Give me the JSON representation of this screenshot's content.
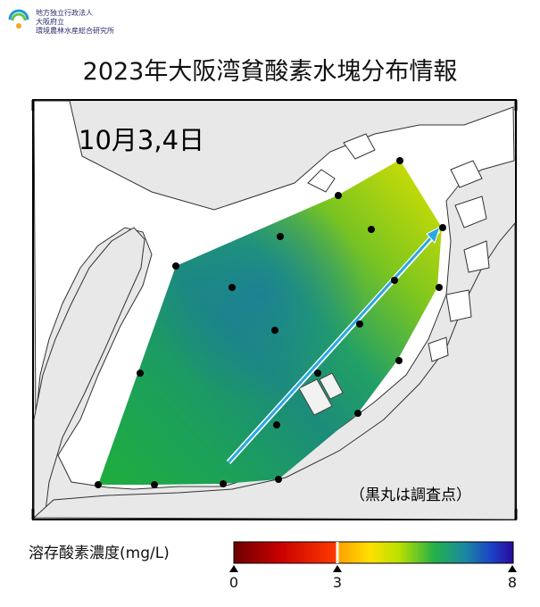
{
  "logo": {
    "line1": "地方独立行政法人",
    "line2": "大阪府立",
    "line3": "環境農林水産総合研究所"
  },
  "title": "2023年大阪湾貧酸素水塊分布情報",
  "map": {
    "date_label": "10月3,4日",
    "note": "（黒丸は調査点）",
    "arrow_color": "#29a8e0"
  },
  "colorbar": {
    "label": "溶存酸素濃度(mg/L)",
    "ticks": [
      "0",
      "3",
      "8"
    ],
    "colors": [
      "#7a0000",
      "#e00000",
      "#ff7a00",
      "#ffd700",
      "#b4e000",
      "#1fb34a",
      "#1c7fa0",
      "#1c3ac8",
      "#2a0aa0"
    ]
  },
  "stations_count_visible": 23
}
